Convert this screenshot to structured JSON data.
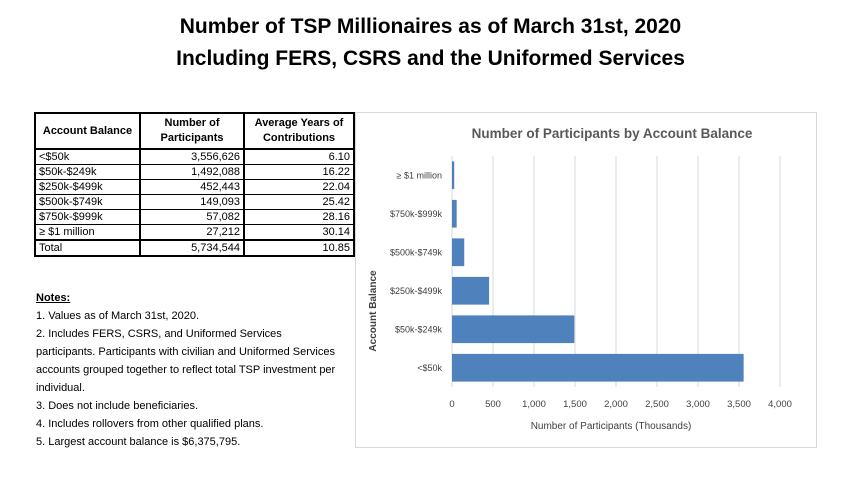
{
  "title": {
    "line1": "Number of TSP Millionaires as of March 31st, 2020",
    "line2": "Including FERS, CSRS and the Uniformed Services"
  },
  "table": {
    "headers": [
      "Account Balance",
      "Number of Participants",
      "Average Years of Contributions"
    ],
    "rows": [
      {
        "balance": "<$50k",
        "participants": "3,556,626",
        "years": "6.10"
      },
      {
        "balance": "$50k-$249k",
        "participants": "1,492,088",
        "years": "16.22"
      },
      {
        "balance": "$250k-$499k",
        "participants": "452,443",
        "years": "22.04"
      },
      {
        "balance": "$500k-$749k",
        "participants": "149,093",
        "years": "25.42"
      },
      {
        "balance": "$750k-$999k",
        "participants": "57,082",
        "years": "28.16"
      },
      {
        "balance": "≥ $1 million",
        "participants": "27,212",
        "years": "30.14"
      }
    ],
    "total": {
      "balance": "Total",
      "participants": "5,734,544",
      "years": "10.85"
    }
  },
  "notes": {
    "title": "Notes:",
    "items": [
      "1. Values as of March 31st, 2020.",
      "2. Includes FERS, CSRS, and Uniformed Services participants. Participants with civilian and Uniformed Services accounts grouped together to reflect total TSP investment per individual.",
      "3. Does not include beneficiaries.",
      "4. Includes rollovers from other qualified plans.",
      "5. Largest account balance is $6,375,795."
    ]
  },
  "colors": {
    "bar": "#4f81bd",
    "gridline": "#d9d9d9",
    "axis_text": "#404040",
    "chart_title": "#595959"
  },
  "chart_data": {
    "type": "bar",
    "orientation": "horizontal",
    "title": "Number of Participants by Account Balance",
    "xlabel": "Number of Participants   (Thousands)",
    "ylabel": "Account Balance",
    "categories": [
      "<$50k",
      "$50k-$249k",
      "$250k-$499k",
      "$500k-$749k",
      "$750k-$999k",
      "≥ $1 million"
    ],
    "values": [
      3556.626,
      1492.088,
      452.443,
      149.093,
      57.082,
      27.212
    ],
    "xlim": [
      0,
      4000
    ],
    "xticks": [
      0,
      500,
      1000,
      1500,
      2000,
      2500,
      3000,
      3500,
      4000
    ],
    "xtick_labels": [
      "0",
      "500",
      "1,000",
      "1,500",
      "2,000",
      "2,500",
      "3,000",
      "3,500",
      "4,000"
    ],
    "grid": true,
    "legend": "none"
  }
}
